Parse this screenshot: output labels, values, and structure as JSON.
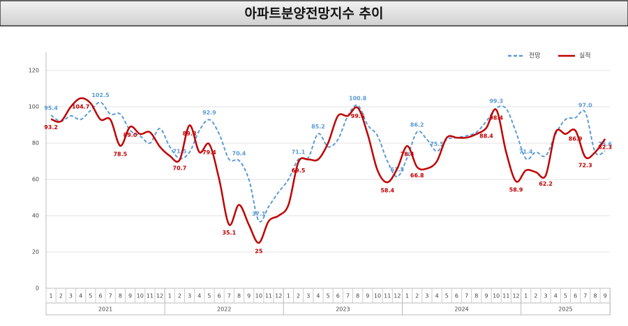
{
  "chart_data": {
    "type": "line",
    "title": "아파트분양전망지수 추이",
    "categories": [
      "1",
      "2",
      "3",
      "4",
      "5",
      "6",
      "7",
      "8",
      "9",
      "10",
      "11",
      "12",
      "1",
      "2",
      "3",
      "4",
      "5",
      "6",
      "7",
      "8",
      "9",
      "10",
      "11",
      "12",
      "1",
      "2",
      "3",
      "4",
      "5",
      "6",
      "7",
      "8",
      "9",
      "10",
      "11",
      "12",
      "1",
      "2",
      "3",
      "4",
      "5",
      "6",
      "7",
      "8",
      "9",
      "10",
      "11",
      "12",
      "1",
      "2",
      "3",
      "4",
      "5",
      "6",
      "7",
      "8",
      "9"
    ],
    "years": [
      "2021",
      "2022",
      "2023",
      "2024",
      "2025"
    ],
    "ylim": [
      0,
      130
    ],
    "yticks": [
      0,
      20,
      40,
      60,
      80,
      100,
      120
    ],
    "grid": true,
    "legend": "top-right",
    "series": [
      {
        "name": "전망",
        "color": "#5b9bd5",
        "dashed": true,
        "values": [
          95.4,
          92,
          95,
          93,
          98,
          102.5,
          96,
          96,
          87,
          84,
          80,
          88,
          78,
          71.5,
          75,
          87,
          92.9,
          85,
          71,
          70.4,
          60,
          37.1,
          45,
          53,
          60,
          71.1,
          72,
          85.2,
          78,
          82,
          95,
          100.8,
          90,
          84,
          70,
          61.5,
          72,
          86.2,
          82,
          75.5,
          82,
          83,
          84,
          86,
          92,
          99.3,
          99,
          86,
          71.4,
          75,
          73,
          85,
          93,
          94,
          97.0,
          75,
          75.6
        ],
        "value_labels": [
          "95.4",
          null,
          null,
          null,
          null,
          "102.5",
          null,
          null,
          null,
          null,
          null,
          null,
          null,
          "71.5",
          null,
          null,
          "92.9",
          null,
          null,
          "70.4",
          null,
          "37.1",
          null,
          null,
          null,
          "71.1",
          null,
          "85.2",
          null,
          null,
          null,
          "100.8",
          null,
          null,
          null,
          "61.5",
          null,
          "86.2",
          null,
          "75.5",
          null,
          null,
          null,
          null,
          null,
          "99.3",
          null,
          null,
          "71.4",
          null,
          null,
          null,
          null,
          null,
          "97.0",
          null,
          "75.6"
        ]
      },
      {
        "name": "실적",
        "color": "#c00000",
        "dashed": false,
        "values": [
          93.2,
          92,
          100,
          104.7,
          102,
          93,
          93,
          78.5,
          89.0,
          85,
          86,
          78,
          73,
          70.7,
          89.8,
          75,
          79.4,
          60,
          35.1,
          46,
          35,
          25,
          37,
          40,
          46,
          69.5,
          71,
          71,
          80,
          95,
          95,
          99.5,
          85,
          65,
          58.4,
          66,
          78.4,
          66.8,
          66,
          70,
          83,
          83,
          83,
          85,
          88.4,
          98.4,
          75,
          58.9,
          65,
          64,
          62.2,
          86,
          85,
          86.9,
          72.3,
          75,
          82.3
        ],
        "value_labels": [
          "93.2",
          null,
          null,
          "104.7",
          null,
          null,
          null,
          "78.5",
          "89.0",
          null,
          null,
          null,
          null,
          "70.7",
          "89.8",
          null,
          "79.4",
          null,
          "35.1",
          null,
          null,
          "25",
          null,
          null,
          null,
          "69.5",
          null,
          null,
          null,
          null,
          null,
          "99.5",
          null,
          null,
          "58.4",
          null,
          "78.4",
          "66.8",
          null,
          null,
          null,
          null,
          null,
          null,
          "88.4",
          "98.4",
          null,
          "58.9",
          null,
          null,
          "62.2",
          null,
          null,
          "86.9",
          "72.3",
          null,
          "82.3"
        ]
      }
    ]
  }
}
